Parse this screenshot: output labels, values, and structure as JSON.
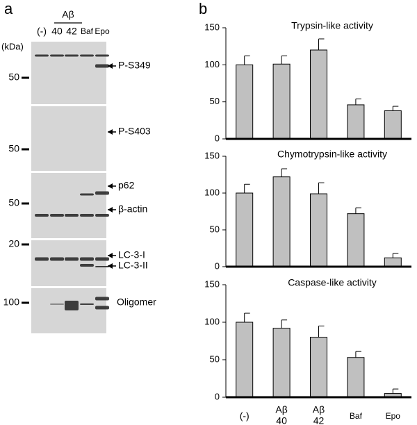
{
  "panel_a": {
    "label": "a",
    "group_label": "Aβ",
    "lanes": [
      "(-)",
      "40",
      "42",
      "Baf",
      "Epo"
    ],
    "unit": "(kDa)",
    "blots": [
      {
        "marker": "50",
        "bands": [
          "P-S349"
        ]
      },
      {
        "marker": "50",
        "bands": [
          "P-S403"
        ]
      },
      {
        "marker": "50",
        "bands": [
          "p62",
          "β-actin"
        ]
      },
      {
        "marker": "20",
        "bands": [
          "LC-3-I",
          "LC-3-II"
        ]
      },
      {
        "marker": "100",
        "bands": [
          "Oligomer"
        ]
      }
    ]
  },
  "panel_b": {
    "label": "b"
  },
  "chart_data": [
    {
      "type": "bar",
      "title": "Trypsin-like activity",
      "values": [
        100,
        101,
        120,
        46,
        38
      ],
      "error": [
        12,
        11,
        15,
        8,
        6
      ],
      "color": "#c0c0c0",
      "ylim": [
        0,
        150
      ],
      "yticks": [
        0,
        50,
        100,
        150
      ]
    },
    {
      "type": "bar",
      "title": "Chymotrypsin-like activity",
      "values": [
        100,
        122,
        99,
        72,
        12
      ],
      "error": [
        12,
        11,
        15,
        8,
        6
      ],
      "color": "#c0c0c0",
      "ylim": [
        0,
        150
      ],
      "yticks": [
        0,
        50,
        100,
        150
      ]
    },
    {
      "type": "bar",
      "title": "Caspase-like activity",
      "values": [
        100,
        92,
        80,
        53,
        5
      ],
      "error": [
        12,
        11,
        15,
        8,
        6
      ],
      "categories": [
        [
          "(-)"
        ],
        [
          "Aβ",
          "40"
        ],
        [
          "Aβ",
          "42"
        ],
        [
          "Baf"
        ],
        [
          "Epo"
        ]
      ],
      "color": "#c0c0c0",
      "ylim": [
        0,
        150
      ],
      "yticks": [
        0,
        50,
        100,
        150
      ]
    }
  ]
}
